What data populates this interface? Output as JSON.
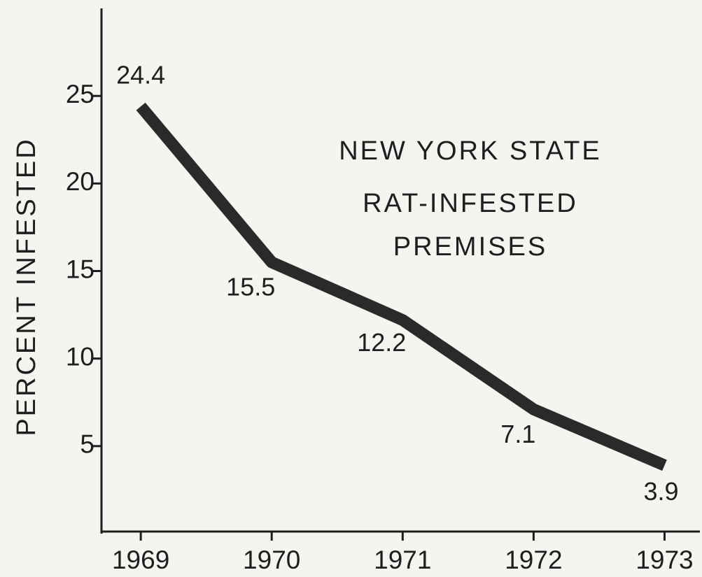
{
  "chart_data": {
    "type": "line",
    "ylabel": "PERCENT INFESTED",
    "annotations": [
      "NEW YORK STATE",
      "RAT-INFESTED",
      "PREMISES"
    ],
    "x": [
      1969,
      1970,
      1971,
      1972,
      1973
    ],
    "series": [
      {
        "color": "#2a2a2a",
        "values": [
          24.4,
          15.5,
          12.2,
          7.1,
          3.9
        ]
      }
    ],
    "xlim": [
      1968.7,
      1973.27
    ],
    "xticks": [
      1969,
      1970,
      1971,
      1972,
      1973
    ],
    "ylim": [
      0,
      30
    ],
    "yticks": [
      5,
      10,
      15,
      20,
      25
    ]
  }
}
